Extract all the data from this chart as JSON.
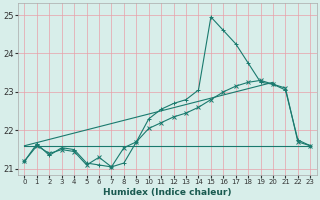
{
  "xlabel": "Humidex (Indice chaleur)",
  "xlim": [
    -0.5,
    23.5
  ],
  "ylim": [
    20.85,
    25.3
  ],
  "yticks": [
    21,
    22,
    23,
    24,
    25
  ],
  "xticks": [
    0,
    1,
    2,
    3,
    4,
    5,
    6,
    7,
    8,
    9,
    10,
    11,
    12,
    13,
    14,
    15,
    16,
    17,
    18,
    19,
    20,
    21,
    22,
    23
  ],
  "bg_color": "#d8eeea",
  "grid_color": "#e8a0a8",
  "line_color": "#1a7a6e",
  "curve_jagged": [
    21.2,
    21.65,
    21.35,
    21.55,
    21.5,
    21.15,
    21.1,
    21.05,
    21.15,
    21.7,
    22.3,
    22.55,
    22.7,
    22.8,
    23.05,
    24.95,
    24.6,
    24.25,
    23.75,
    23.25,
    23.2,
    23.05,
    21.75,
    21.6
  ],
  "curve_trend": [
    21.2,
    21.6,
    21.4,
    21.5,
    21.45,
    21.1,
    21.3,
    21.05,
    21.55,
    21.7,
    22.05,
    22.2,
    22.35,
    22.45,
    22.6,
    22.8,
    23.0,
    23.15,
    23.25,
    23.3,
    23.2,
    23.1,
    21.7,
    21.6
  ],
  "curve_flat_y": 21.6,
  "curve_linear_start": 21.6,
  "curve_linear_end": 23.25
}
